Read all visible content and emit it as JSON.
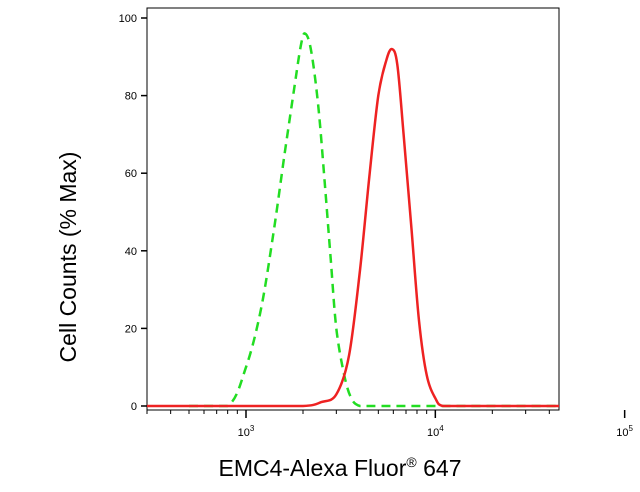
{
  "chart_data": {
    "type": "line",
    "title": "",
    "xlabel": "EMC4-Alexa Fluor",
    "xlabel_superscript": "®",
    "xlabel_suffix": " 647",
    "ylabel": "Cell Counts (% Max)",
    "x_scale": "log",
    "xlim": [
      300,
      45000
    ],
    "ylim": [
      0,
      100
    ],
    "y_ticks": [
      0,
      20,
      40,
      60,
      80,
      100
    ],
    "y_tick_labels": [
      "0",
      "20",
      "40",
      "60",
      "80",
      "100"
    ],
    "x_major_ticks": [
      1000,
      10000,
      100000
    ],
    "x_tick_labels": [
      {
        "base": "10",
        "exp": "3"
      },
      {
        "base": "10",
        "exp": "4"
      },
      {
        "base": "10",
        "exp": "5"
      }
    ],
    "grid": false,
    "legend": "none",
    "series": [
      {
        "style": "dashed",
        "color": "#22dd22",
        "x": [
          500,
          800,
          1000,
          1200,
          1400,
          1600,
          1800,
          1950,
          2050,
          2200,
          2400,
          2600,
          2800,
          3000,
          3300,
          3600,
          4000,
          5000,
          10000,
          45000
        ],
        "y": [
          0,
          0,
          10,
          25,
          45,
          65,
          82,
          93,
          96,
          92,
          78,
          58,
          38,
          20,
          8,
          2,
          0,
          0,
          0,
          0
        ]
      },
      {
        "style": "solid",
        "color": "#ee2222",
        "x": [
          300,
          1000,
          2000,
          2500,
          3000,
          3500,
          4000,
          4500,
          5000,
          5500,
          5900,
          6300,
          6800,
          7500,
          8200,
          9000,
          10000,
          11000,
          15000,
          45000
        ],
        "y": [
          0,
          0,
          0,
          1,
          3,
          13,
          35,
          60,
          80,
          89,
          92,
          88,
          70,
          45,
          22,
          8,
          2,
          0,
          0,
          0
        ]
      }
    ]
  },
  "colors": {
    "axis": "#000000",
    "background": "#ffffff"
  }
}
